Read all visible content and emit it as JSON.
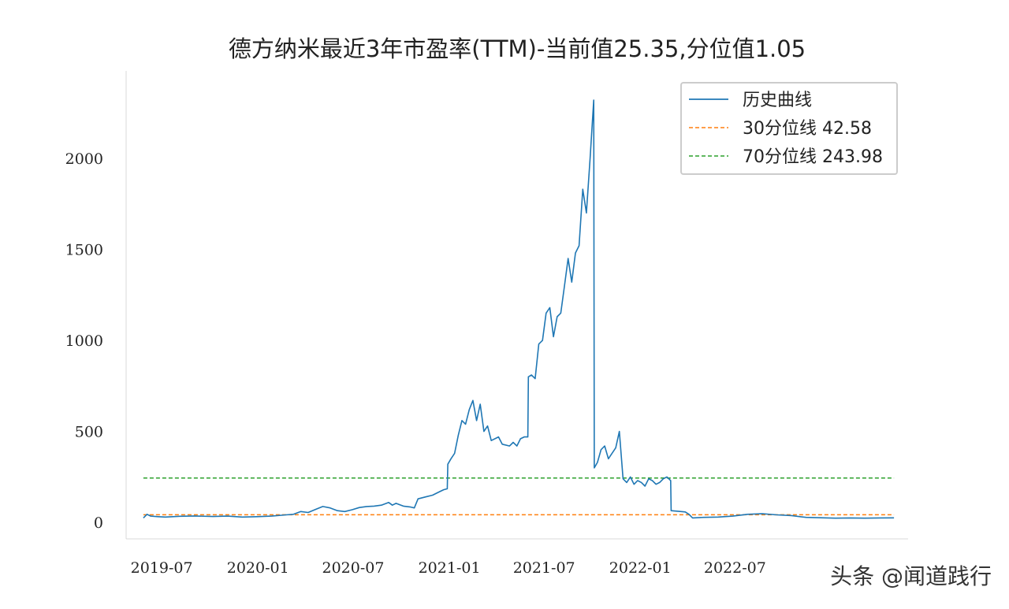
{
  "chart_data": {
    "type": "line",
    "title": "德方纳米最近3年市盈率(TTM)-当前值25.35,分位值1.05",
    "xlabel": "",
    "ylabel": "",
    "ylim": [
      -90,
      2480
    ],
    "xlim": [
      "2019-04-24",
      "2023-05-28"
    ],
    "y_ticks": [
      0,
      500,
      1000,
      1500,
      2000
    ],
    "x_tick_labels": [
      "2019-07",
      "2020-01",
      "2020-07",
      "2021-01",
      "2021-07",
      "2022-01",
      "2022-07"
    ],
    "x_tick_dates": [
      "2019-07-01",
      "2020-01-01",
      "2020-07-01",
      "2021-01-01",
      "2021-07-01",
      "2022-01-01",
      "2022-07-01"
    ],
    "grid": false,
    "legend_position": "top-right",
    "series": [
      {
        "name": "历史曲线",
        "color": "#1f77b4",
        "style": "solid",
        "points": [
          [
            "2019-05-27",
            25
          ],
          [
            "2019-06-03",
            45
          ],
          [
            "2019-06-10",
            35
          ],
          [
            "2019-06-24",
            32
          ],
          [
            "2019-07-08",
            30
          ],
          [
            "2019-08-05",
            34
          ],
          [
            "2019-09-02",
            36
          ],
          [
            "2019-10-07",
            33
          ],
          [
            "2019-11-04",
            35
          ],
          [
            "2019-12-02",
            30
          ],
          [
            "2019-12-30",
            32
          ],
          [
            "2020-01-27",
            35
          ],
          [
            "2020-02-24",
            42
          ],
          [
            "2020-03-09",
            45
          ],
          [
            "2020-03-23",
            60
          ],
          [
            "2020-04-06",
            55
          ],
          [
            "2020-04-20",
            72
          ],
          [
            "2020-05-04",
            88
          ],
          [
            "2020-05-18",
            80
          ],
          [
            "2020-06-01",
            65
          ],
          [
            "2020-06-15",
            60
          ],
          [
            "2020-06-29",
            70
          ],
          [
            "2020-07-13",
            82
          ],
          [
            "2020-07-27",
            88
          ],
          [
            "2020-08-10",
            90
          ],
          [
            "2020-08-24",
            95
          ],
          [
            "2020-09-07",
            110
          ],
          [
            "2020-09-14",
            95
          ],
          [
            "2020-09-21",
            105
          ],
          [
            "2020-10-05",
            90
          ],
          [
            "2020-10-19",
            85
          ],
          [
            "2020-10-26",
            80
          ],
          [
            "2020-11-02",
            130
          ],
          [
            "2020-11-16",
            140
          ],
          [
            "2020-11-30",
            150
          ],
          [
            "2020-12-14",
            170
          ],
          [
            "2020-12-21",
            180
          ],
          [
            "2020-12-28",
            185
          ],
          [
            "2020-12-29",
            320
          ],
          [
            "2021-01-04",
            350
          ],
          [
            "2021-01-11",
            380
          ],
          [
            "2021-01-18",
            480
          ],
          [
            "2021-01-25",
            560
          ],
          [
            "2021-02-01",
            540
          ],
          [
            "2021-02-08",
            620
          ],
          [
            "2021-02-15",
            670
          ],
          [
            "2021-02-22",
            560
          ],
          [
            "2021-03-01",
            650
          ],
          [
            "2021-03-08",
            500
          ],
          [
            "2021-03-15",
            530
          ],
          [
            "2021-03-22",
            450
          ],
          [
            "2021-04-05",
            470
          ],
          [
            "2021-04-12",
            430
          ],
          [
            "2021-04-26",
            420
          ],
          [
            "2021-05-03",
            440
          ],
          [
            "2021-05-10",
            420
          ],
          [
            "2021-05-17",
            460
          ],
          [
            "2021-05-24",
            470
          ],
          [
            "2021-05-31",
            470
          ],
          [
            "2021-06-01",
            800
          ],
          [
            "2021-06-07",
            810
          ],
          [
            "2021-06-14",
            790
          ],
          [
            "2021-06-21",
            980
          ],
          [
            "2021-06-28",
            1000
          ],
          [
            "2021-07-05",
            1150
          ],
          [
            "2021-07-12",
            1180
          ],
          [
            "2021-07-19",
            1020
          ],
          [
            "2021-07-26",
            1130
          ],
          [
            "2021-08-02",
            1150
          ],
          [
            "2021-08-09",
            1300
          ],
          [
            "2021-08-16",
            1450
          ],
          [
            "2021-08-23",
            1320
          ],
          [
            "2021-08-30",
            1480
          ],
          [
            "2021-09-06",
            1520
          ],
          [
            "2021-09-13",
            1830
          ],
          [
            "2021-09-20",
            1700
          ],
          [
            "2021-09-27",
            2000
          ],
          [
            "2021-10-04",
            2320
          ],
          [
            "2021-10-05",
            300
          ],
          [
            "2021-10-11",
            330
          ],
          [
            "2021-10-18",
            400
          ],
          [
            "2021-10-25",
            420
          ],
          [
            "2021-11-01",
            350
          ],
          [
            "2021-11-08",
            380
          ],
          [
            "2021-11-15",
            410
          ],
          [
            "2021-11-22",
            500
          ],
          [
            "2021-11-29",
            240
          ],
          [
            "2021-12-06",
            220
          ],
          [
            "2021-12-13",
            250
          ],
          [
            "2021-12-20",
            210
          ],
          [
            "2021-12-27",
            230
          ],
          [
            "2022-01-03",
            220
          ],
          [
            "2022-01-10",
            200
          ],
          [
            "2022-01-17",
            240
          ],
          [
            "2022-01-24",
            230
          ],
          [
            "2022-01-31",
            210
          ],
          [
            "2022-02-07",
            220
          ],
          [
            "2022-02-14",
            240
          ],
          [
            "2022-02-21",
            250
          ],
          [
            "2022-02-28",
            230
          ],
          [
            "2022-03-01",
            65
          ],
          [
            "2022-03-14",
            62
          ],
          [
            "2022-03-28",
            58
          ],
          [
            "2022-04-04",
            45
          ],
          [
            "2022-04-11",
            25
          ],
          [
            "2022-05-02",
            28
          ],
          [
            "2022-05-30",
            30
          ],
          [
            "2022-06-27",
            35
          ],
          [
            "2022-07-25",
            45
          ],
          [
            "2022-08-22",
            48
          ],
          [
            "2022-09-19",
            42
          ],
          [
            "2022-10-17",
            38
          ],
          [
            "2022-11-14",
            28
          ],
          [
            "2022-12-12",
            26
          ],
          [
            "2023-01-09",
            24
          ],
          [
            "2023-02-06",
            25
          ],
          [
            "2023-03-06",
            24
          ],
          [
            "2023-04-03",
            25
          ],
          [
            "2023-05-01",
            25.35
          ]
        ]
      },
      {
        "name": "30分位线 42.58",
        "color": "#ff7f0e",
        "style": "dashed",
        "value": 42.58,
        "x_range": [
          "2019-05-27",
          "2023-05-01"
        ]
      },
      {
        "name": "70分位线 243.98",
        "color": "#2ca02c",
        "style": "dashed",
        "value": 243.98,
        "x_range": [
          "2019-05-27",
          "2023-05-01"
        ]
      }
    ]
  },
  "watermark": "头条 @闻道践行"
}
